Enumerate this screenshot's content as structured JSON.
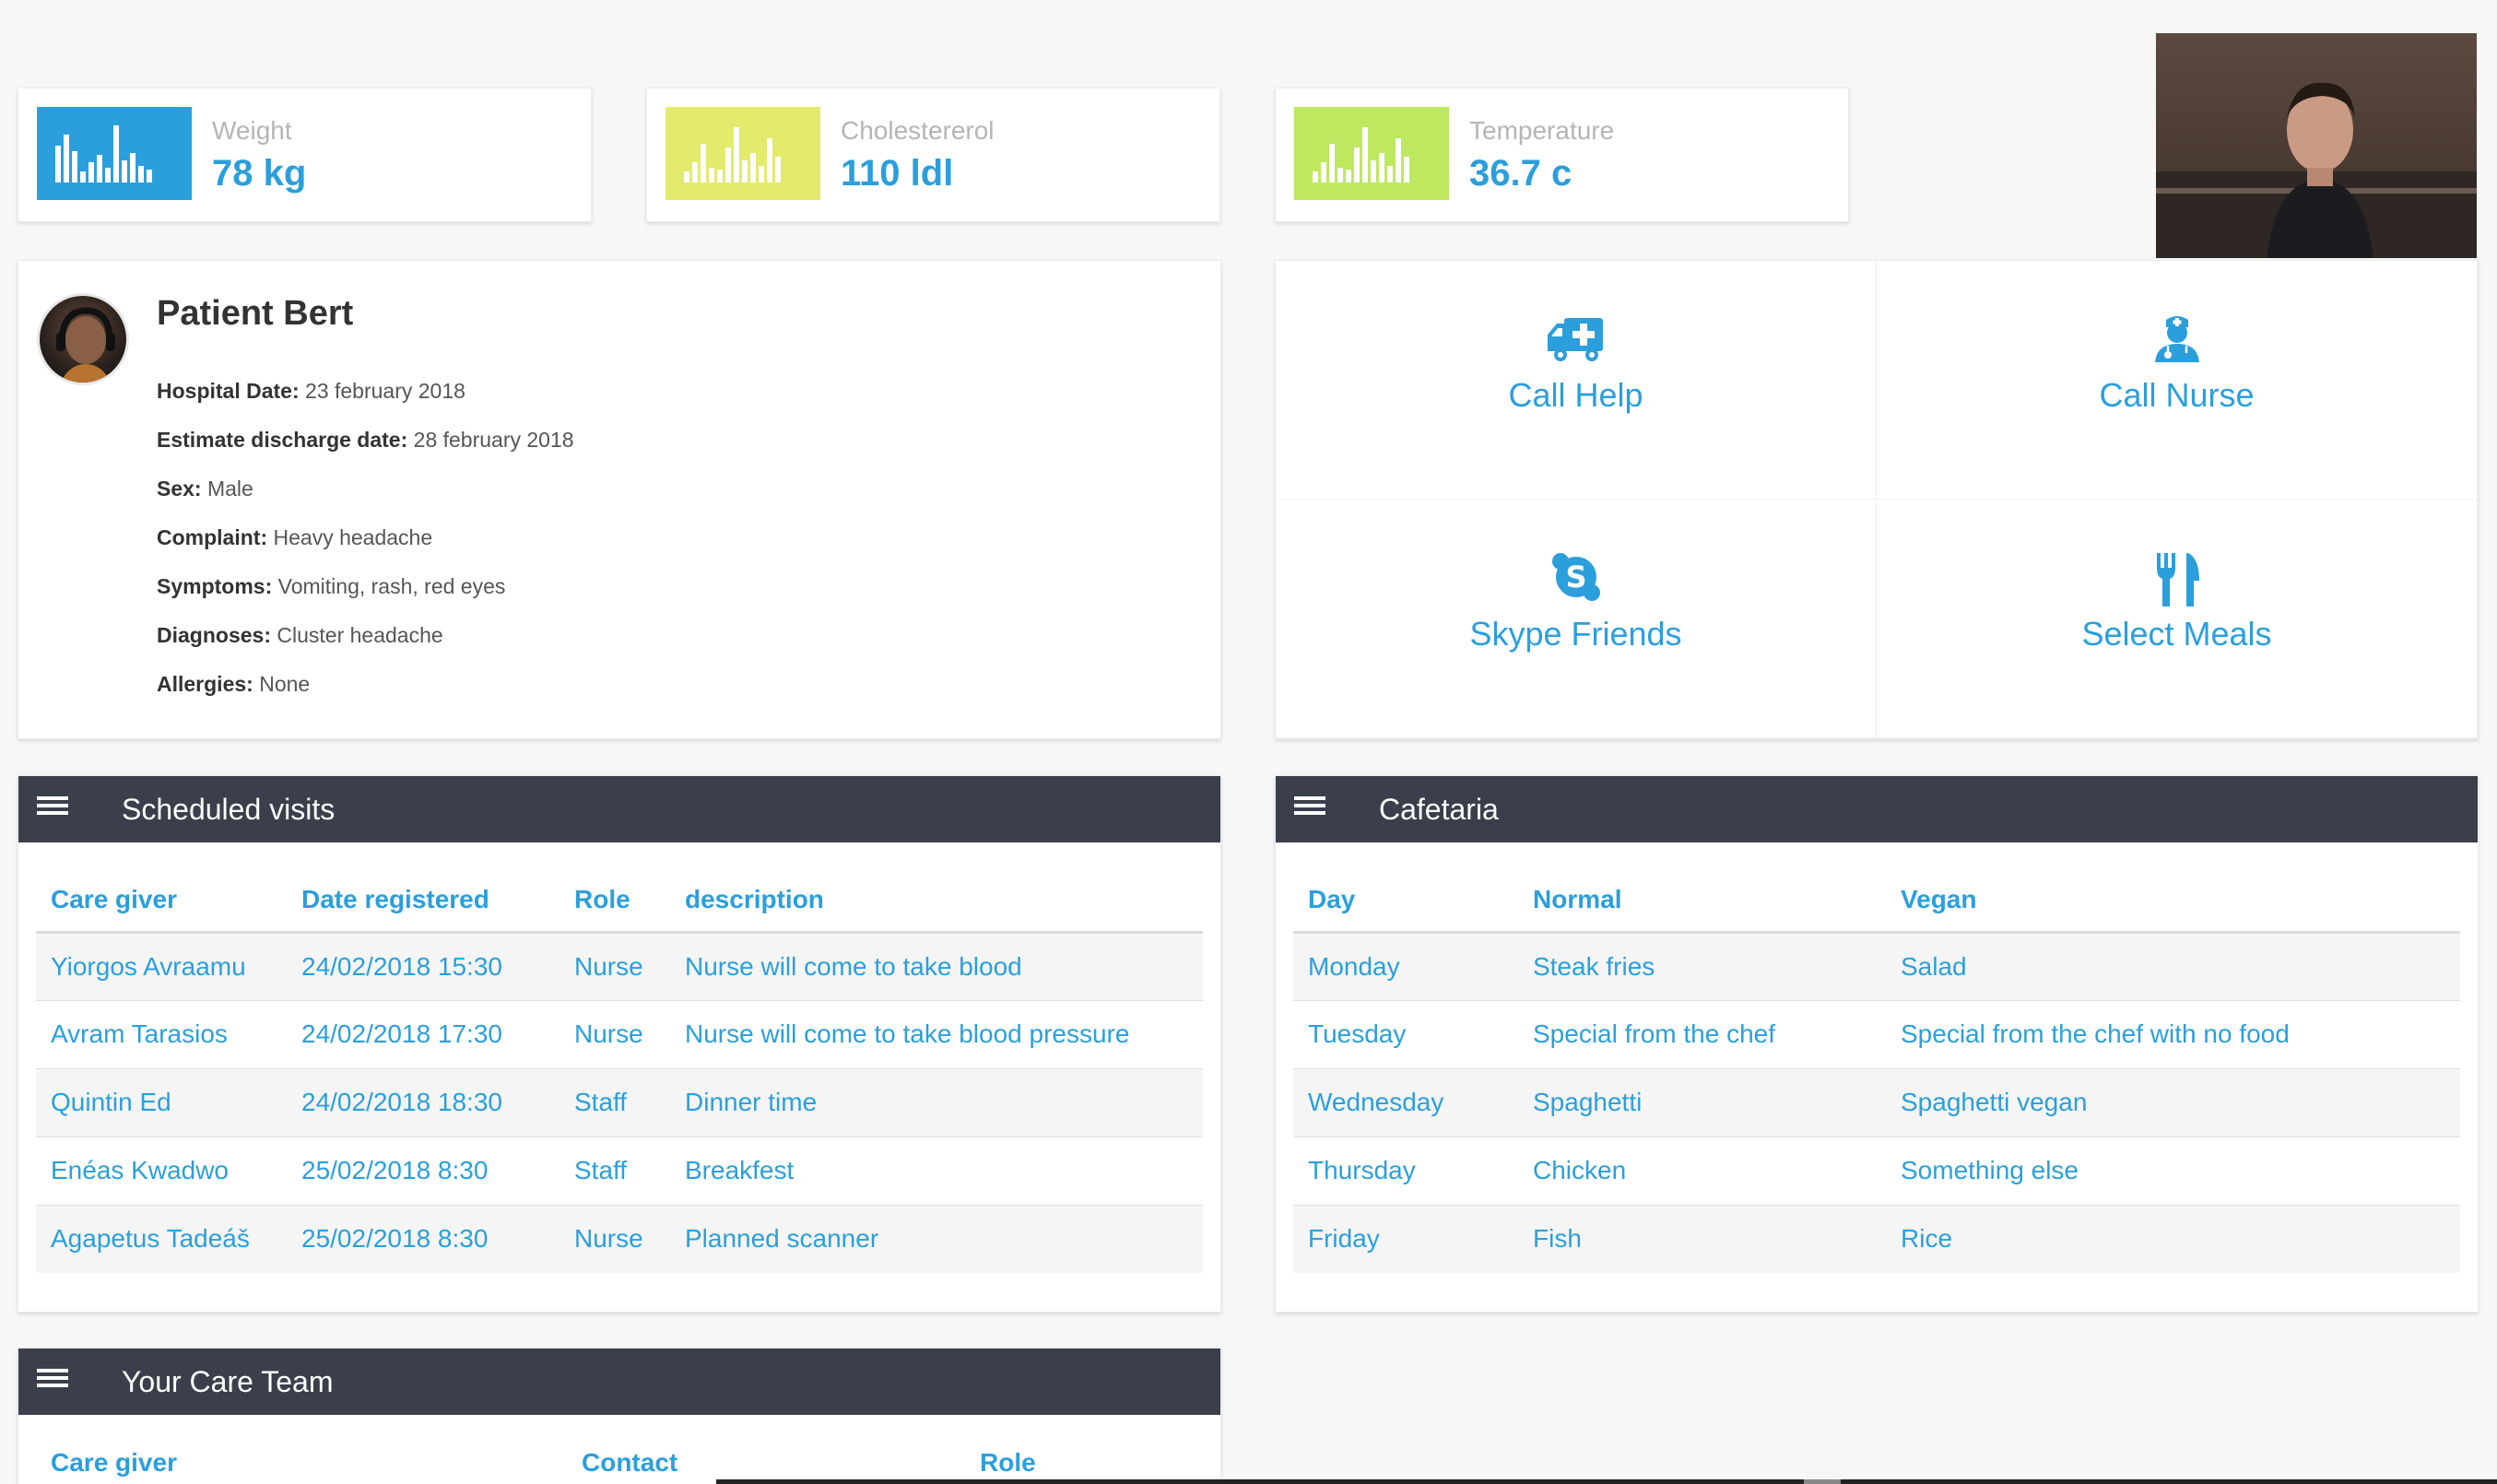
{
  "stats": [
    {
      "label": "Weight",
      "value": "78 kg",
      "color": "#2b9fdc",
      "icon": "bar-chart-icon"
    },
    {
      "label": "Cholestererol",
      "value": "110 ldl",
      "color": "#e4ea6c",
      "icon": "bar-chart-icon"
    },
    {
      "label": "Temperature",
      "value": "36.7 c",
      "color": "#bde860",
      "icon": "bar-chart-icon"
    }
  ],
  "patient": {
    "name": "Patient Bert",
    "fields": [
      {
        "label": "Hospital Date:",
        "value": "23 february 2018"
      },
      {
        "label": "Estimate discharge date:",
        "value": "28 february 2018"
      },
      {
        "label": "Sex:",
        "value": "Male"
      },
      {
        "label": "Complaint:",
        "value": "Heavy headache"
      },
      {
        "label": "Symptoms:",
        "value": "Vomiting, rash, red eyes"
      },
      {
        "label": "Diagnoses:",
        "value": "Cluster headache"
      },
      {
        "label": "Allergies:",
        "value": "None"
      }
    ]
  },
  "actions": [
    {
      "label": "Call Help",
      "icon": "ambulance-icon"
    },
    {
      "label": "Call Nurse",
      "icon": "nurse-icon"
    },
    {
      "label": "Skype Friends",
      "icon": "skype-icon"
    },
    {
      "label": "Select Meals",
      "icon": "utensils-icon"
    }
  ],
  "visits": {
    "title": "Scheduled visits",
    "columns": [
      "Care giver",
      "Date registered",
      "Role",
      "description"
    ],
    "rows": [
      [
        "Yiorgos Avraamu",
        "24/02/2018 15:30",
        "Nurse",
        "Nurse will come to take blood"
      ],
      [
        "Avram Tarasios",
        "24/02/2018 17:30",
        "Nurse",
        "Nurse will come to take blood pressure"
      ],
      [
        "Quintin Ed",
        "24/02/2018 18:30",
        "Staff",
        "Dinner time"
      ],
      [
        "Enéas Kwadwo",
        "25/02/2018 8:30",
        "Staff",
        "Breakfest"
      ],
      [
        "Agapetus Tadeáš",
        "25/02/2018 8:30",
        "Nurse",
        "Planned scanner"
      ]
    ]
  },
  "cafeteria": {
    "title": "Cafetaria",
    "columns": [
      "Day",
      "Normal",
      "Vegan"
    ],
    "rows": [
      [
        "Monday",
        "Steak fries",
        "Salad"
      ],
      [
        "Tuesday",
        "Special from the chef",
        "Special from the chef with no food"
      ],
      [
        "Wednesday",
        "Spaghetti",
        "Spaghetti vegan"
      ],
      [
        "Thursday",
        "Chicken",
        "Something else"
      ],
      [
        "Friday",
        "Fish",
        "Rice"
      ]
    ]
  },
  "team": {
    "title": "Your Care Team",
    "columns": [
      "Care giver",
      "Contact",
      "Role"
    ]
  },
  "colors": {
    "accent": "#2b9fdc",
    "header": "#3a3f4b"
  }
}
